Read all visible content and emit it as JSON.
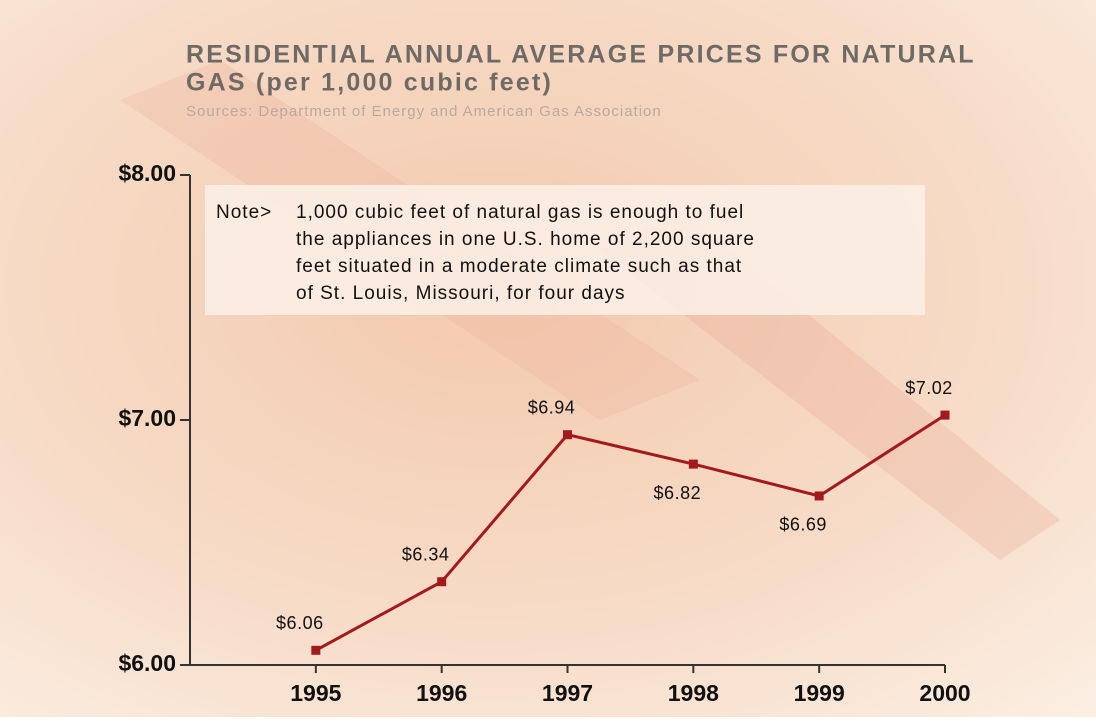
{
  "chart_data": {
    "type": "line",
    "title": [
      "RESIDENTIAL ANNUAL AVERAGE PRICES FOR NATURAL",
      "GAS (per 1,000 cubic feet)"
    ],
    "subtitle": "Sources: Department of Energy and American Gas Association",
    "note_label": "Note>",
    "note_lines": [
      "1,000 cubic feet of natural gas is enough to fuel",
      "the appliances in one U.S. home of 2,200 square",
      "feet situated in a moderate climate such as that",
      "of St. Louis, Missouri, for four days"
    ],
    "x": [
      1995,
      1996,
      1997,
      1998,
      1999,
      2000
    ],
    "xlim": [
      1994,
      2000
    ],
    "xticks": [
      1995,
      1996,
      1997,
      1998,
      1999,
      2000
    ],
    "values": [
      6.06,
      6.34,
      6.94,
      6.82,
      6.69,
      7.02
    ],
    "value_labels": [
      "$6.06",
      "$6.34",
      "$6.94",
      "$6.82",
      "$6.69",
      "$7.02"
    ],
    "color": "#a3191c",
    "ylim": [
      6,
      8
    ],
    "yticks": [
      {
        "value": 6,
        "label": "$6.00"
      },
      {
        "value": 7,
        "label": "$7.00"
      },
      {
        "value": 8,
        "label": "$8.00"
      }
    ]
  }
}
